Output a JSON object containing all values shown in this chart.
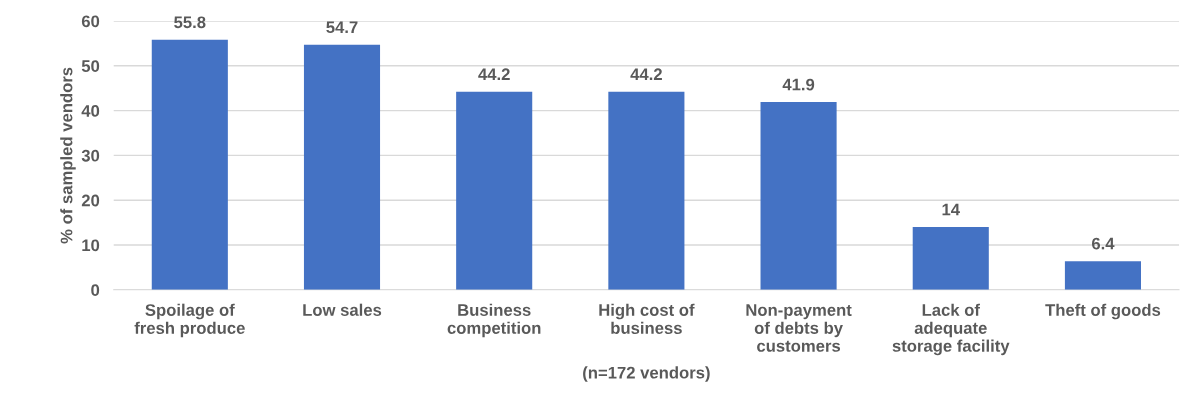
{
  "chart_data": {
    "type": "bar",
    "categories": [
      "Spoilage of\nfresh produce",
      "Low sales",
      "Business\ncompetition",
      "High cost of\nbusiness",
      "Non-payment\nof debts by\ncustomers",
      "Lack of\nadequate\nstorage facility",
      "Theft of goods"
    ],
    "values": [
      55.8,
      54.7,
      44.2,
      44.2,
      41.9,
      14,
      6.4
    ],
    "color": "#4472c4",
    "ylabel": "% of sampled vendors",
    "xlabel": "(n=172 vendors)",
    "ylim": [
      0,
      60
    ],
    "yticks": [
      0,
      10,
      20,
      30,
      40,
      50,
      60
    ],
    "grid": "y",
    "data_labels": true
  }
}
